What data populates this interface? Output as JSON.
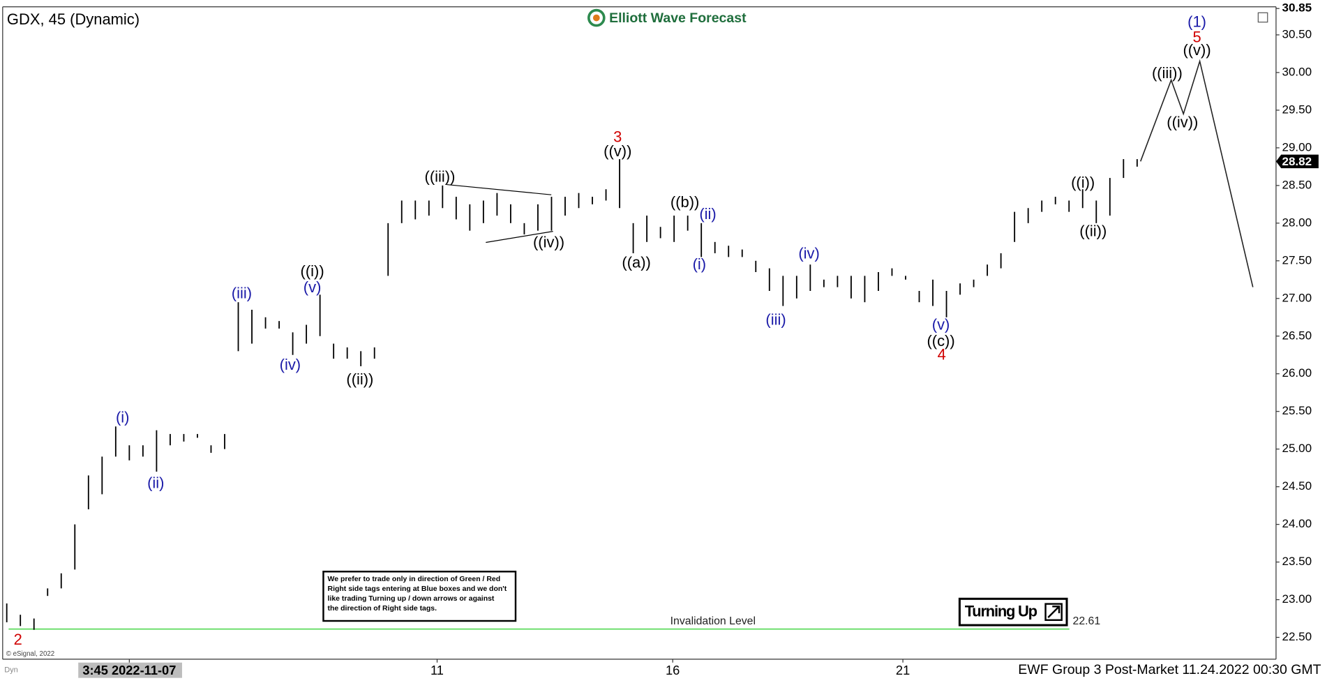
{
  "chart_data": {
    "type": "range_bar",
    "title": "GDX, 45 (Dynamic)",
    "brand": "Elliott Wave Forecast",
    "footer": "EWF Group 3 Post-Market 11.24.2022 00:30 GMT",
    "copyright": "© eSignal, 2022",
    "mode_tag": "Dyn",
    "color": "#000000",
    "xlim": [
      -0.3,
      93.2
    ],
    "ylim": [
      22.21,
      30.85
    ],
    "xticks": [
      {
        "value": 9,
        "label": "3:45 2022-11-07"
      },
      {
        "value": 31.6,
        "label": "11"
      },
      {
        "value": 48.9,
        "label": "16"
      },
      {
        "value": 65.8,
        "label": "21"
      }
    ],
    "yticks": [
      {
        "value": 22.5,
        "label": "22.50"
      },
      {
        "value": 23,
        "label": "23.00"
      },
      {
        "value": 23.5,
        "label": "23.50"
      },
      {
        "value": 24,
        "label": "24.00"
      },
      {
        "value": 24.5,
        "label": "24.50"
      },
      {
        "value": 25,
        "label": "25.00"
      },
      {
        "value": 25.5,
        "label": "25.50"
      },
      {
        "value": 26,
        "label": "26.00"
      },
      {
        "value": 26.5,
        "label": "26.50"
      },
      {
        "value": 27,
        "label": "27.00"
      },
      {
        "value": 27.5,
        "label": "27.50"
      },
      {
        "value": 28,
        "label": "28.00"
      },
      {
        "value": 28.5,
        "label": "28.50"
      },
      {
        "value": 29,
        "label": "29.00"
      },
      {
        "value": 29.5,
        "label": "29.50"
      },
      {
        "value": 30,
        "label": "30.00"
      },
      {
        "value": 30.5,
        "label": "30.50"
      },
      {
        "value": 30.85,
        "label": "30.85"
      }
    ],
    "last_price": 28.82,
    "high": [
      22.95,
      22.8,
      22.75,
      23.15,
      23.35,
      24.0,
      24.65,
      24.9,
      25.3,
      25.05,
      25.05,
      25.25,
      25.2,
      25.2,
      25.2,
      25.05,
      25.2,
      26.95,
      26.85,
      26.75,
      26.7,
      26.55,
      26.65,
      27.05,
      26.4,
      26.35,
      26.3,
      26.35,
      28.0,
      28.3,
      28.3,
      28.3,
      28.5,
      28.35,
      28.25,
      28.3,
      28.4,
      28.25,
      28.0,
      28.25,
      28.35,
      28.35,
      28.4,
      28.35,
      28.45,
      28.85,
      28.0,
      28.1,
      27.95,
      28.1,
      28.1,
      28.0,
      27.75,
      27.7,
      27.65,
      27.5,
      27.4,
      27.3,
      27.3,
      27.45,
      27.25,
      27.3,
      27.3,
      27.3,
      27.35,
      27.4,
      27.3,
      27.1,
      27.25,
      27.1,
      27.2,
      27.25,
      27.45,
      27.6,
      28.15,
      28.2,
      28.3,
      28.35,
      28.3,
      28.45,
      28.3,
      28.6,
      28.85,
      28.85
    ],
    "low": [
      22.7,
      22.65,
      22.6,
      23.05,
      23.15,
      23.4,
      24.2,
      24.4,
      24.9,
      24.85,
      24.9,
      24.7,
      25.05,
      25.1,
      25.15,
      24.95,
      25.0,
      26.3,
      26.4,
      26.6,
      26.6,
      26.25,
      26.4,
      26.5,
      26.2,
      26.2,
      26.1,
      26.2,
      27.3,
      28.0,
      28.05,
      28.1,
      28.2,
      28.05,
      27.9,
      28.0,
      28.1,
      28.0,
      27.85,
      27.9,
      27.9,
      28.1,
      28.2,
      28.25,
      28.3,
      28.2,
      27.6,
      27.75,
      27.8,
      27.75,
      27.9,
      27.55,
      27.6,
      27.55,
      27.55,
      27.35,
      27.1,
      26.9,
      27.0,
      27.1,
      27.15,
      27.15,
      27.0,
      26.95,
      27.1,
      27.3,
      27.25,
      26.95,
      26.9,
      26.75,
      27.05,
      27.15,
      27.3,
      27.4,
      27.75,
      28.0,
      28.15,
      28.25,
      28.15,
      28.2,
      28.0,
      28.1,
      28.6,
      28.75
    ],
    "projection": {
      "x": [
        83.25,
        85.5,
        86.4,
        87.6,
        91.5
      ],
      "values": [
        28.82,
        29.9,
        29.45,
        30.15,
        27.15
      ],
      "color": "#222222"
    },
    "invalidation": {
      "label": "Invalidation Level",
      "value": 22.61,
      "color": "#66dd66"
    },
    "turning_tag": "Turning Up",
    "disclaimer": [
      "We prefer to trade only in direction of Green / Red",
      "Right side tags entering at Blue boxes and we don't",
      "like trading Turning up / down arrows or against",
      "the direction of Right side tags."
    ],
    "annotations": [
      {
        "text": "2",
        "color": "#d00000"
      },
      {
        "text": "(i)",
        "color": "#1a1aa8"
      },
      {
        "text": "(ii)",
        "color": "#1a1aa8"
      },
      {
        "text": "(iii)",
        "color": "#1a1aa8"
      },
      {
        "text": "(iv)",
        "color": "#1a1aa8"
      },
      {
        "text": "((i))",
        "color": "#000000"
      },
      {
        "text": "(v)",
        "color": "#1a1aa8"
      },
      {
        "text": "((ii))",
        "color": "#000000"
      },
      {
        "text": "((iii))",
        "color": "#000000"
      },
      {
        "text": "((iv))",
        "color": "#000000"
      },
      {
        "text": "3",
        "color": "#d00000"
      },
      {
        "text": "((v))",
        "color": "#000000"
      },
      {
        "text": "((a))",
        "color": "#000000"
      },
      {
        "text": "((b))",
        "color": "#000000"
      },
      {
        "text": "(ii)",
        "color": "#1a1aa8"
      },
      {
        "text": "(i)",
        "color": "#1a1aa8"
      },
      {
        "text": "(iii)",
        "color": "#1a1aa8"
      },
      {
        "text": "(iv)",
        "color": "#1a1aa8"
      },
      {
        "text": "(v)",
        "color": "#1a1aa8"
      },
      {
        "text": "((c))",
        "color": "#000000"
      },
      {
        "text": "4",
        "color": "#d00000"
      },
      {
        "text": "((i))",
        "color": "#000000"
      },
      {
        "text": "((ii))",
        "color": "#000000"
      },
      {
        "text": "((iii))",
        "color": "#000000"
      },
      {
        "text": "((iv))",
        "color": "#000000"
      },
      {
        "text": "((v))",
        "color": "#000000"
      },
      {
        "text": "5",
        "color": "#d00000"
      },
      {
        "text": "(1)",
        "color": "#1a1aa8"
      }
    ]
  }
}
